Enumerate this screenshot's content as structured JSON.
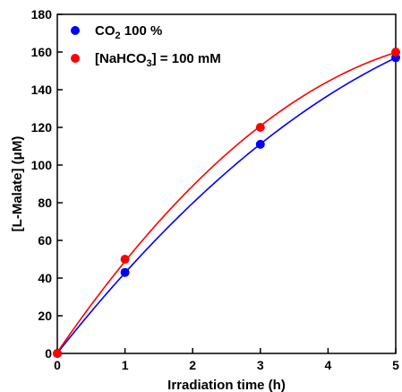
{
  "chart_data": {
    "type": "line",
    "xlabel": "Irradiation time (h)",
    "ylabel": "[L-Malate] (μM)",
    "xlim": [
      0,
      5
    ],
    "ylim": [
      0,
      180
    ],
    "xticks": [
      0,
      1,
      2,
      3,
      4,
      5
    ],
    "yticks": [
      0,
      20,
      40,
      60,
      80,
      100,
      120,
      140,
      160,
      180
    ],
    "grid": false,
    "legend": "top-left",
    "series": [
      {
        "legend": {
          "main": "CO",
          "sub": "2",
          "tail": " 100 %"
        },
        "color": "#0000ff",
        "x": [
          0,
          1,
          3,
          5
        ],
        "y": [
          0,
          43,
          111,
          157
        ]
      },
      {
        "legend": {
          "main": "[NaHCO",
          "sub": "3",
          "tail": "] = 100 mM"
        },
        "color": "#ff0000",
        "x": [
          0,
          1,
          3,
          5
        ],
        "y": [
          0,
          50,
          120,
          160
        ]
      }
    ]
  }
}
